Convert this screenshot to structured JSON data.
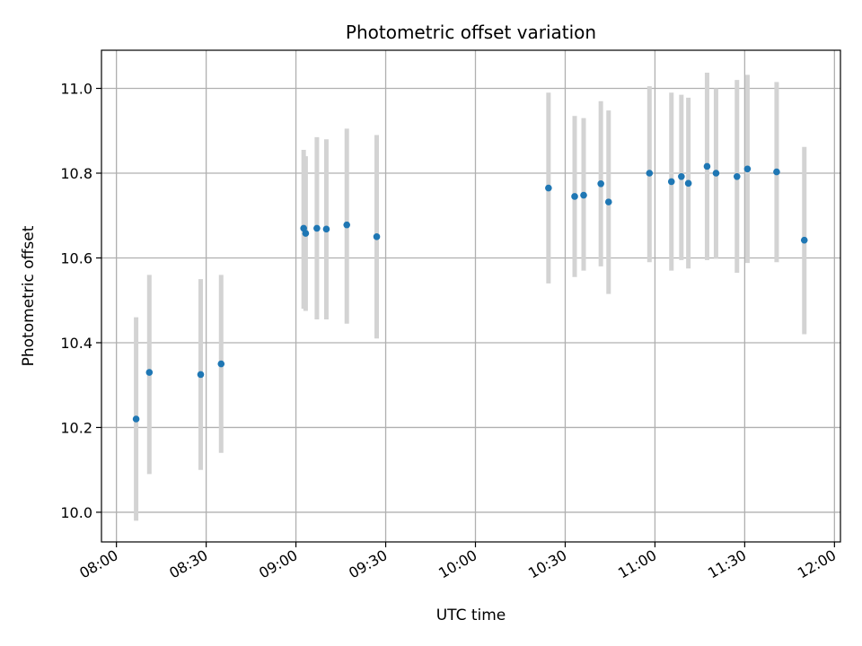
{
  "chart_data": {
    "type": "scatter",
    "title": "Photometric offset variation",
    "xlabel": "UTC time",
    "ylabel": "Photometric offset",
    "xlim": [
      "07:55",
      "12:02"
    ],
    "ylim": [
      9.93,
      11.09
    ],
    "xticks": [
      "08:00",
      "08:30",
      "09:00",
      "09:30",
      "10:00",
      "10:30",
      "11:00",
      "11:30",
      "12:00"
    ],
    "yticks": [
      "10.0",
      "10.2",
      "10.4",
      "10.6",
      "10.8",
      "11.0"
    ],
    "grid": true,
    "marker_color": "#1f77b4",
    "errorbar_color": "#d3d3d3",
    "points": [
      {
        "x": "08:06:35",
        "y": 10.22,
        "ylow": 9.98,
        "yhigh": 10.46
      },
      {
        "x": "08:11:00",
        "y": 10.33,
        "ylow": 10.09,
        "yhigh": 10.56
      },
      {
        "x": "08:28:10",
        "y": 10.325,
        "ylow": 10.1,
        "yhigh": 10.55
      },
      {
        "x": "08:35:00",
        "y": 10.35,
        "ylow": 10.14,
        "yhigh": 10.56
      },
      {
        "x": "09:02:35",
        "y": 10.67,
        "ylow": 10.48,
        "yhigh": 10.855
      },
      {
        "x": "09:03:15",
        "y": 10.658,
        "ylow": 10.475,
        "yhigh": 10.84
      },
      {
        "x": "09:07:00",
        "y": 10.67,
        "ylow": 10.455,
        "yhigh": 10.885
      },
      {
        "x": "09:10:10",
        "y": 10.668,
        "ylow": 10.455,
        "yhigh": 10.88
      },
      {
        "x": "09:17:00",
        "y": 10.678,
        "ylow": 10.445,
        "yhigh": 10.905
      },
      {
        "x": "09:27:00",
        "y": 10.65,
        "ylow": 10.41,
        "yhigh": 10.89
      },
      {
        "x": "10:24:25",
        "y": 10.765,
        "ylow": 10.54,
        "yhigh": 10.99
      },
      {
        "x": "10:33:10",
        "y": 10.745,
        "ylow": 10.555,
        "yhigh": 10.935
      },
      {
        "x": "10:36:10",
        "y": 10.748,
        "ylow": 10.57,
        "yhigh": 10.93
      },
      {
        "x": "10:41:55",
        "y": 10.775,
        "ylow": 10.58,
        "yhigh": 10.97
      },
      {
        "x": "10:44:30",
        "y": 10.732,
        "ylow": 10.515,
        "yhigh": 10.948
      },
      {
        "x": "10:58:10",
        "y": 10.8,
        "ylow": 10.59,
        "yhigh": 11.005
      },
      {
        "x": "11:05:30",
        "y": 10.78,
        "ylow": 10.57,
        "yhigh": 10.99
      },
      {
        "x": "11:08:50",
        "y": 10.792,
        "ylow": 10.595,
        "yhigh": 10.985
      },
      {
        "x": "11:11:10",
        "y": 10.776,
        "ylow": 10.575,
        "yhigh": 10.978
      },
      {
        "x": "11:17:25",
        "y": 10.816,
        "ylow": 10.595,
        "yhigh": 11.037
      },
      {
        "x": "11:20:25",
        "y": 10.8,
        "ylow": 10.598,
        "yhigh": 11.0
      },
      {
        "x": "11:27:25",
        "y": 10.792,
        "ylow": 10.565,
        "yhigh": 11.02
      },
      {
        "x": "11:30:55",
        "y": 10.81,
        "ylow": 10.588,
        "yhigh": 11.032
      },
      {
        "x": "11:40:40",
        "y": 10.803,
        "ylow": 10.59,
        "yhigh": 11.015
      },
      {
        "x": "11:49:55",
        "y": 10.642,
        "ylow": 10.42,
        "yhigh": 10.862
      }
    ]
  }
}
